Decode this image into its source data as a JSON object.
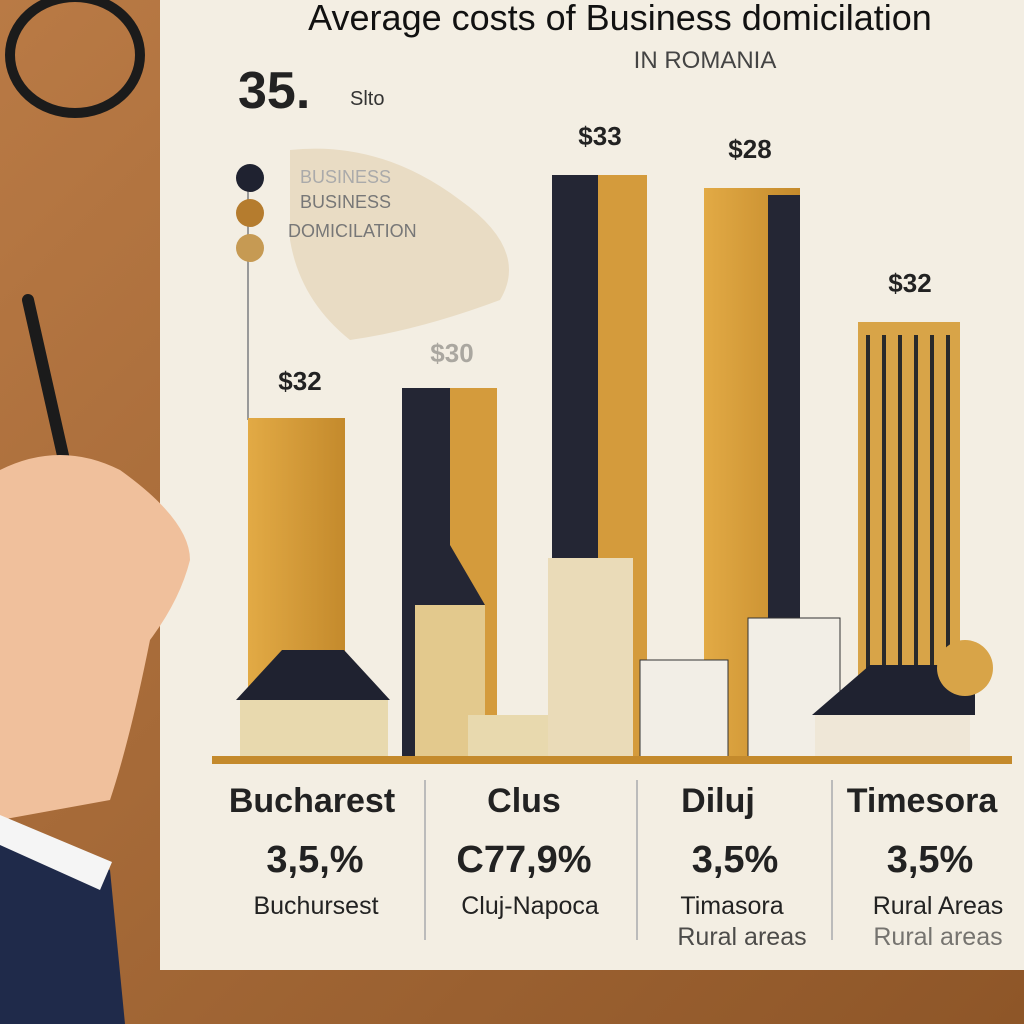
{
  "header": {
    "title": "Average costs of Business domicilation",
    "subtitle": "IN ROMANIA",
    "big_number": "35.",
    "big_number_note": "Slto"
  },
  "legend": [
    "BUSINESS",
    "BUSINESS",
    "DOMICILATION"
  ],
  "bar_labels": [
    "$32",
    "$30",
    "$33",
    "$28",
    "$32"
  ],
  "columns": [
    {
      "city": "Bucharest",
      "percent": "3,5,%",
      "lines": [
        "Buchursest"
      ]
    },
    {
      "city": "Clus",
      "percent": "C77,9%",
      "lines": [
        "Cluj-Napoca"
      ]
    },
    {
      "city": "Diluj",
      "percent": "3,5%",
      "lines": [
        "Timasora",
        "Rural areas"
      ]
    },
    {
      "city": "Timesora",
      "percent": "3,5%",
      "lines": [
        "Rural Areas",
        "Rural areas"
      ]
    }
  ]
}
